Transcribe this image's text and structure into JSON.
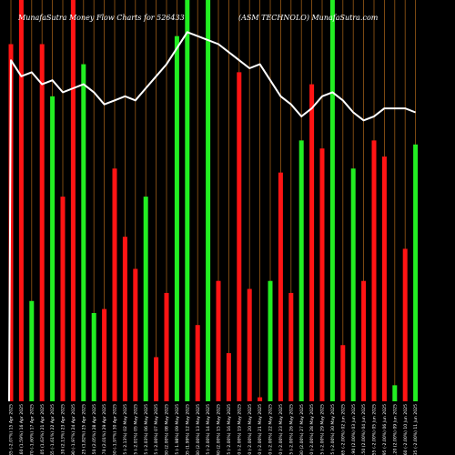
{
  "colors": {
    "background": "#000000",
    "up": "#22ee22",
    "down": "#ff1414",
    "grid": "#9a5a16",
    "line": "#ffffff",
    "text": "#ffffff"
  },
  "chart_data": {
    "type": "bar",
    "title_left": "MunafaSutra  Money Flow  Charts for 526433",
    "title_right": "(ASM TECHNOLO) MunafaSutra.com",
    "ylim": [
      0,
      100
    ],
    "grid": "vertical",
    "categories": [
      "1057.35 (-2.07%) 15 Apr 2025",
      "1079.60 (1.59%) 16 Apr 2025",
      "1062.70 (-1.60%) 17 Apr 2025",
      "1080.05 (1.63%) 21 Apr 2025",
      "1062.65 (-1.61%) 22 Apr 2025",
      "1085.30 (2.13%) 23 Apr 2025",
      "1063.90 (-1.97%) 24 Apr 2025",
      "1083.25 (1.82%) 25 Apr 2025",
      "1105.50 (2.05%) 28 Apr 2025",
      "1127.70 (2.01%) 29 Apr 2025",
      "1105.50 (-1.97%) 30 Apr 2025",
      "1081.95 (-2.13%) 02 May 2025",
      "1060.25 (-2.01%) 05 May 2025",
      "1038.75 (-2.03%) 06 May 2025",
      "1017.95 (-2.00%) 07 May 2025",
      "1038.30 (2.00%) 08 May 2025",
      "1017.75 (-1.98%) 09 May 2025",
      "1038.05 (1.99%) 12 May 2025",
      "1058.80 (2.00%) 13 May 2025",
      "1037.65 (-2.00%) 14 May 2025",
      "1058.40 (2.00%) 15 May 2025",
      "1037.25 (-2.00%) 16 May 2025",
      "1016.50 (-2.00%) 19 May 2025",
      "996.20 (-2.00%) 20 May 2025",
      "976.30 (-2.00%) 21 May 2025",
      "956.80 (-2.00%) 22 May 2025",
      "937.70 (-2.00%) 23 May 2025",
      "918.95 (-2.00%) 26 May 2025",
      "937.30 (2.00%) 27 May 2025",
      "918.60 (-2.00%) 28 May 2025",
      "900.25 (-2.00%) 29 May 2025",
      "882.25 (-2.00%) 30 May 2025",
      "864.65 (-2.00%) 02 Jun 2025",
      "881.90 (2.00%) 03 Jun 2025",
      "899.50 (2.00%) 04 Jun 2025",
      "881.55 (-2.00%) 05 Jun 2025",
      "863.95 (-2.00%) 06 Jun 2025",
      "881.20 (2.00%) 09 Jun 2025",
      "863.60 (-2.00%) 10 Jun 2025",
      "846.35 (-2.00%) 11 Jun 2025"
    ],
    "bar_colors": [
      "down",
      "down",
      "up",
      "down",
      "up",
      "down",
      "down",
      "up",
      "up",
      "down",
      "down",
      "down",
      "down",
      "up",
      "down",
      "down",
      "up",
      "up",
      "down",
      "up",
      "down",
      "down",
      "down",
      "down",
      "down",
      "up",
      "down",
      "down",
      "up",
      "down",
      "down",
      "up",
      "down",
      "up",
      "down",
      "down",
      "down",
      "up",
      "down",
      "up"
    ],
    "values": [
      89,
      100,
      25,
      89,
      76,
      51,
      100,
      84,
      22,
      23,
      58,
      41,
      33,
      51,
      11,
      27,
      91,
      100,
      19,
      100,
      30,
      12,
      82,
      28,
      1,
      30,
      57,
      27,
      65,
      79,
      63,
      100,
      14,
      58,
      30,
      65,
      61,
      4,
      38,
      64
    ],
    "line_values": [
      85,
      81,
      82,
      79,
      80,
      77,
      78,
      79,
      77,
      74,
      75,
      76,
      75,
      78,
      81,
      84,
      88,
      92,
      91,
      90,
      89,
      87,
      85,
      83,
      84,
      80,
      76,
      74,
      71,
      73,
      76,
      77,
      75,
      72,
      70,
      71,
      73,
      73,
      73,
      72
    ]
  }
}
